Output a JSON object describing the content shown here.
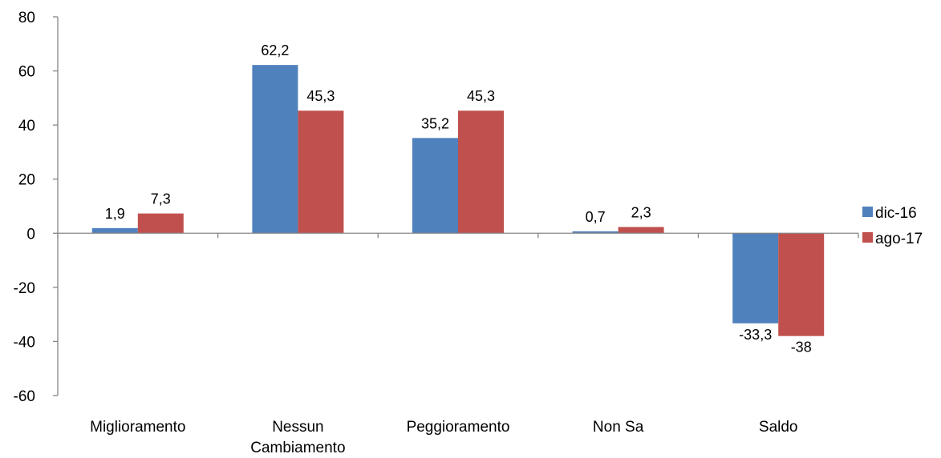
{
  "chart_data": {
    "type": "bar",
    "categories": [
      [
        "Miglioramento"
      ],
      [
        "Nessun",
        "Cambiamento"
      ],
      [
        "Peggioramento"
      ],
      [
        "Non Sa"
      ],
      [
        "Saldo"
      ]
    ],
    "series": [
      {
        "name": "dic-16",
        "color": "#4f81bd",
        "values": [
          1.9,
          62.2,
          35.2,
          0.7,
          -33.3
        ],
        "labels": [
          "1,9",
          "62,2",
          "35,2",
          "0,7",
          "-33,3"
        ]
      },
      {
        "name": "ago-17",
        "color": "#c0504d",
        "values": [
          7.3,
          45.3,
          45.3,
          2.3,
          -38
        ],
        "labels": [
          "7,3",
          "45,3",
          "45,3",
          "2,3",
          "-38"
        ]
      }
    ],
    "ylim": [
      -60,
      80
    ],
    "yticks": [
      80,
      60,
      40,
      20,
      0,
      -20,
      -40,
      -60
    ],
    "grid": false,
    "legend_position": "right"
  }
}
